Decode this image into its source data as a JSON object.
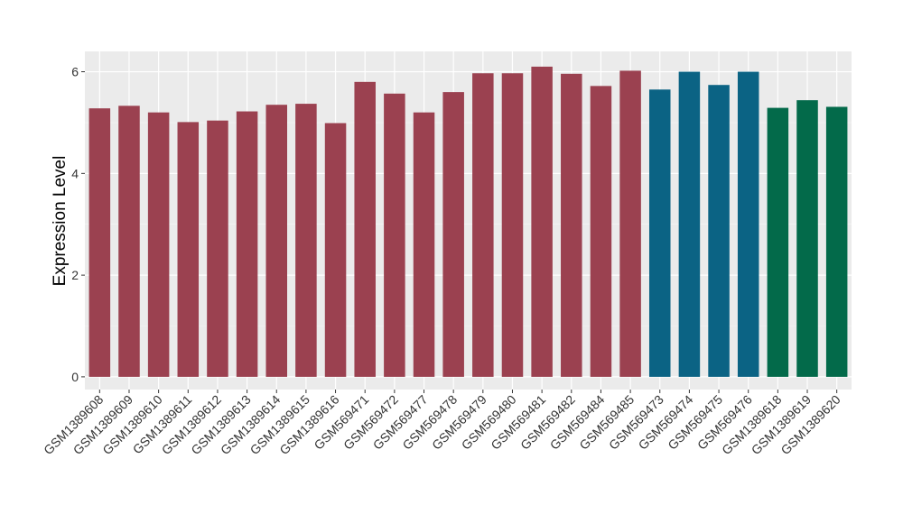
{
  "chart_data": {
    "type": "bar",
    "title": "",
    "xlabel": "",
    "ylabel": "Expression Level",
    "ylim": [
      -0.25,
      6.4
    ],
    "yticks": [
      0,
      2,
      4,
      6
    ],
    "grid": true,
    "categories": [
      "GSM1389608",
      "GSM1389609",
      "GSM1389610",
      "GSM1389611",
      "GSM1389612",
      "GSM1389613",
      "GSM1389614",
      "GSM1389615",
      "GSM1389616",
      "GSM569471",
      "GSM569472",
      "GSM569477",
      "GSM569478",
      "GSM569479",
      "GSM569480",
      "GSM569481",
      "GSM569482",
      "GSM569484",
      "GSM569485",
      "GSM569473",
      "GSM569474",
      "GSM569475",
      "GSM569476",
      "GSM1389618",
      "GSM1389619",
      "GSM1389620"
    ],
    "values": [
      5.28,
      5.33,
      5.2,
      5.01,
      5.04,
      5.22,
      5.35,
      5.37,
      4.99,
      5.8,
      5.57,
      5.2,
      5.6,
      5.97,
      5.97,
      6.1,
      5.96,
      5.72,
      6.02,
      5.65,
      6.0,
      5.74,
      6.0,
      5.29,
      5.44,
      5.31
    ],
    "groups": [
      0,
      0,
      0,
      0,
      0,
      0,
      0,
      0,
      0,
      0,
      0,
      0,
      0,
      0,
      0,
      0,
      0,
      0,
      0,
      1,
      1,
      1,
      1,
      2,
      2,
      2
    ],
    "colors": [
      "#9b4150",
      "#0b6384",
      "#036a4a"
    ]
  }
}
